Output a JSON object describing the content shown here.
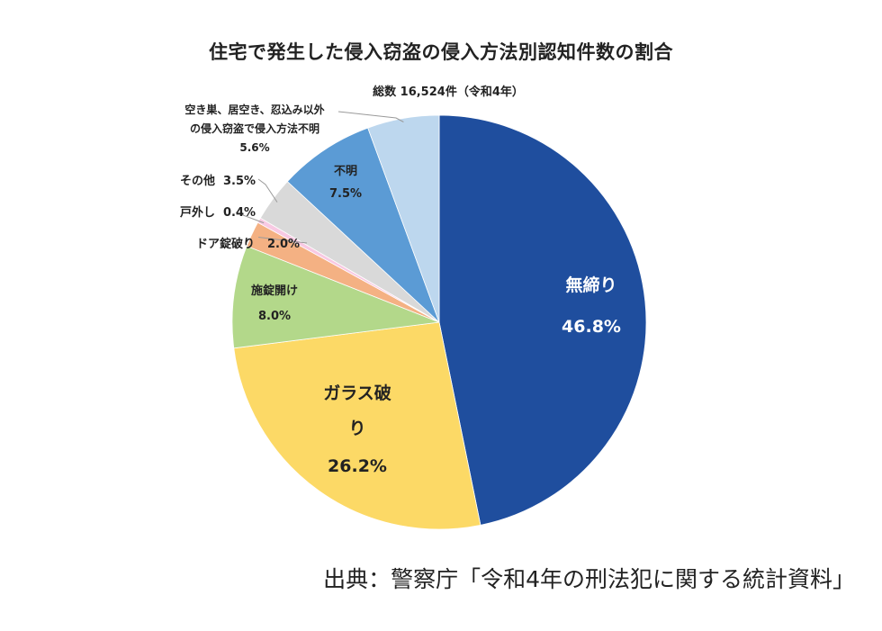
{
  "chart_data": {
    "type": "pie",
    "title": "住宅で発生した侵入窃盗の侵入方法別認知件数の割合",
    "subtitle": "総数 16,524件（令和4年）",
    "unit": "%",
    "start_angle_deg": 0,
    "direction": "clockwise",
    "slices": [
      {
        "key": "muji",
        "lines": [
          "無締り"
        ],
        "value_label": "46.8%",
        "value": 46.8,
        "color": "#1f4e9e"
      },
      {
        "key": "glass",
        "lines": [
          "ガラス破",
          "り"
        ],
        "value_label": "26.2%",
        "value": 26.2,
        "color": "#fcd966"
      },
      {
        "key": "sejo",
        "lines": [
          "施錠開け"
        ],
        "value_label": "8.0%",
        "value": 8.0,
        "color": "#b3d88a"
      },
      {
        "key": "door",
        "lines": [
          "ドア錠破り"
        ],
        "value_label": "2.0%",
        "value": 2.0,
        "color": "#f4b183"
      },
      {
        "key": "tobukuro",
        "lines": [
          "戸外し"
        ],
        "value_label": "0.4%",
        "value": 0.4,
        "color": "#f8c9e3"
      },
      {
        "key": "sonota",
        "lines": [
          "その他"
        ],
        "value_label": "3.5%",
        "value": 3.5,
        "color": "#d9d9d9"
      },
      {
        "key": "fumei",
        "lines": [
          "不明"
        ],
        "value_label": "7.5%",
        "value": 7.5,
        "color": "#5b9bd5"
      },
      {
        "key": "akisu",
        "lines": [
          "空き巣、居空き、忍込み以外",
          "の侵入窃盗で侵入方法不明"
        ],
        "value_label": "5.6%",
        "value": 5.6,
        "color": "#bdd7ee"
      }
    ]
  },
  "source": "出典：警察庁「令和4年の刑法犯に関する統計資料」"
}
